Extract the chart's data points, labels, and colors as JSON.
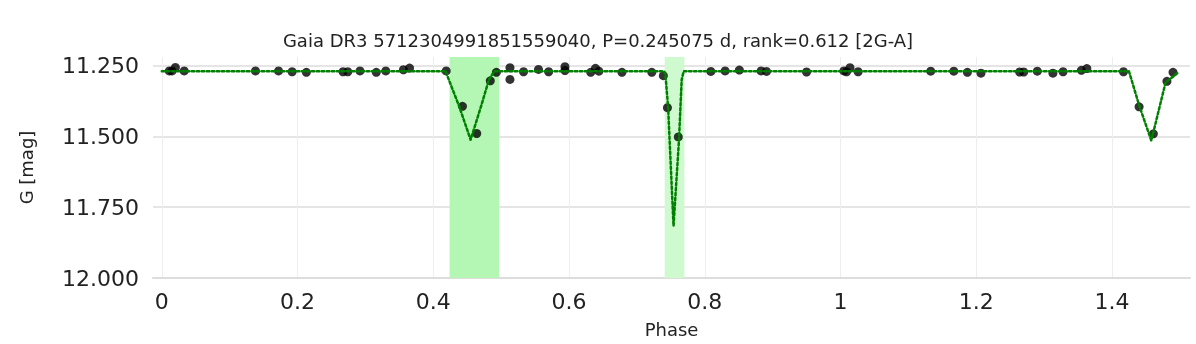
{
  "chart_data": {
    "type": "scatter",
    "title": "Gaia DR3 5712304991851559040, P=0.245075 d, rank=0.612 [2G-A]",
    "xlabel": "Phase",
    "ylabel": "G [mag]",
    "xlim": [
      -0.013,
      1.515
    ],
    "xticks": [
      0,
      0.2,
      0.4,
      0.6,
      0.8,
      1,
      1.2,
      1.4
    ],
    "ylim": [
      12.0,
      11.22
    ],
    "yticks": [
      {
        "value": 11.25,
        "label": "11.250"
      },
      {
        "value": 11.5,
        "label": "11.500"
      },
      {
        "value": 11.75,
        "label": "11.750"
      },
      {
        "value": 12.0,
        "label": "12.000"
      }
    ],
    "grid": true,
    "bands": [
      {
        "axis": "x",
        "from": 0.424,
        "to": 0.497,
        "color": "#b4f7b4"
      },
      {
        "axis": "x",
        "from": 0.741,
        "to": 0.77,
        "color": "#cff9cf"
      }
    ],
    "series": [
      {
        "color": "#000000",
        "marker": "circle",
        "x": [
          0.011,
          0.015,
          0.02,
          0.033,
          0.138,
          0.172,
          0.192,
          0.213,
          0.267,
          0.274,
          0.292,
          0.316,
          0.33,
          0.356,
          0.365,
          0.419,
          0.443,
          0.464,
          0.484,
          0.493,
          0.513,
          0.513,
          0.533,
          0.555,
          0.57,
          0.594,
          0.594,
          0.632,
          0.639,
          0.644,
          0.678,
          0.722,
          0.739,
          0.745,
          0.761,
          0.809,
          0.83,
          0.851,
          0.883,
          0.891,
          0.95,
          1.005,
          1.009,
          1.014,
          1.026,
          1.133,
          1.167,
          1.187,
          1.207,
          1.264,
          1.27,
          1.29,
          1.313,
          1.328,
          1.355,
          1.363,
          1.417,
          1.44,
          1.461,
          1.481,
          1.49
        ],
        "values": [
          11.269,
          11.269,
          11.257,
          11.269,
          11.269,
          11.269,
          11.272,
          11.274,
          11.272,
          11.272,
          11.269,
          11.274,
          11.269,
          11.265,
          11.259,
          11.269,
          11.394,
          11.49,
          11.304,
          11.274,
          11.258,
          11.299,
          11.272,
          11.264,
          11.272,
          11.268,
          11.254,
          11.274,
          11.26,
          11.27,
          11.274,
          11.274,
          11.286,
          11.399,
          11.502,
          11.271,
          11.269,
          11.266,
          11.269,
          11.271,
          11.273,
          11.269,
          11.272,
          11.258,
          11.272,
          11.27,
          11.27,
          11.274,
          11.277,
          11.273,
          11.273,
          11.27,
          11.277,
          11.272,
          11.267,
          11.261,
          11.272,
          11.396,
          11.491,
          11.306,
          11.274
        ]
      },
      {
        "type": "line",
        "color": "#008000",
        "marker": "none",
        "line_style": "dotted",
        "x": [
          0,
          0.418,
          0.438,
          0.455,
          0.47,
          0.482,
          0.49,
          0.74,
          0.742,
          0.746,
          0.754,
          0.762,
          0.766,
          0.769,
          1.425,
          1.44,
          1.458,
          1.479,
          1.497
        ],
        "values": [
          11.27,
          11.27,
          11.393,
          11.512,
          11.397,
          11.3,
          11.27,
          11.27,
          11.28,
          11.397,
          11.816,
          11.514,
          11.3,
          11.27,
          11.27,
          11.39,
          11.515,
          11.31,
          11.276
        ]
      }
    ]
  }
}
